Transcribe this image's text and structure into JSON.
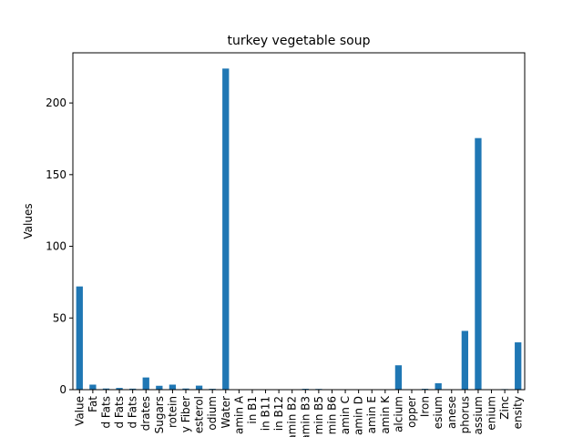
{
  "chart_data": {
    "type": "bar",
    "title": "turkey vegetable soup",
    "xlabel": "",
    "ylabel": "Values",
    "ylim": [
      0,
      235
    ],
    "yticks": [
      0,
      50,
      100,
      150,
      200
    ],
    "grid": false,
    "legend": "none",
    "bar_color": "#1f77b4",
    "categories": [
      "Value",
      "Fat",
      "d Fats",
      "d Fats",
      "d Fats",
      "drates",
      "Sugars",
      "rotein",
      "y Fiber",
      "esterol",
      "odium",
      "Water",
      "amin A",
      "in B1",
      "in B11",
      "in B12",
      "amin B2",
      "amin B3",
      "min B5",
      "min B6",
      "amin C",
      "amin D",
      "amin E",
      "amin K",
      "alcium",
      "opper",
      "Iron",
      "esium",
      "anese",
      "phorus",
      "assium",
      "enium",
      "Zinc",
      "ensity"
    ],
    "values": [
      72,
      3.5,
      0.8,
      1.2,
      0.7,
      8.5,
      2.7,
      3.5,
      0.8,
      2.8,
      0.6,
      224,
      0.1,
      0.05,
      0.05,
      0.05,
      0.1,
      0.6,
      0.5,
      0.2,
      0.1,
      0.1,
      0.3,
      0.2,
      17,
      0.1,
      0.6,
      4.5,
      0.3,
      41,
      175.5,
      0.2,
      0.4,
      33
    ]
  }
}
